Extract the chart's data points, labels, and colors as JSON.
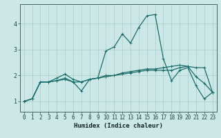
{
  "title": "",
  "xlabel": "Humidex (Indice chaleur)",
  "ylabel": "",
  "xlim": [
    -0.5,
    23.5
  ],
  "ylim": [
    0.6,
    4.75
  ],
  "xticks": [
    0,
    1,
    2,
    3,
    4,
    5,
    6,
    7,
    8,
    9,
    10,
    11,
    12,
    13,
    14,
    15,
    16,
    17,
    18,
    19,
    20,
    21,
    22,
    23
  ],
  "yticks": [
    1,
    2,
    3,
    4
  ],
  "background_color": "#cce8e6",
  "grid_color": "#aaccca",
  "line_color": "#1a6b6b",
  "line1_y": [
    1.0,
    1.1,
    1.75,
    1.75,
    1.8,
    1.85,
    1.75,
    1.4,
    1.85,
    1.9,
    2.95,
    3.1,
    3.6,
    3.25,
    3.85,
    4.3,
    4.35,
    2.65,
    1.8,
    2.2,
    2.3,
    1.6,
    1.1,
    1.35
  ],
  "line2_y": [
    1.0,
    1.1,
    1.75,
    1.75,
    1.8,
    1.9,
    1.75,
    1.75,
    1.85,
    1.9,
    2.0,
    2.0,
    2.05,
    2.1,
    2.15,
    2.2,
    2.2,
    2.2,
    2.2,
    2.3,
    2.35,
    1.95,
    1.7,
    1.35
  ],
  "line3_y": [
    1.0,
    1.1,
    1.75,
    1.75,
    1.9,
    2.05,
    1.85,
    1.75,
    1.85,
    1.9,
    1.95,
    2.0,
    2.1,
    2.15,
    2.2,
    2.25,
    2.25,
    2.3,
    2.35,
    2.4,
    2.35,
    2.3,
    2.3,
    1.35
  ],
  "markersize": 3.5,
  "linewidth": 0.9,
  "tick_fontsize": 5.5,
  "xlabel_fontsize": 6.5
}
